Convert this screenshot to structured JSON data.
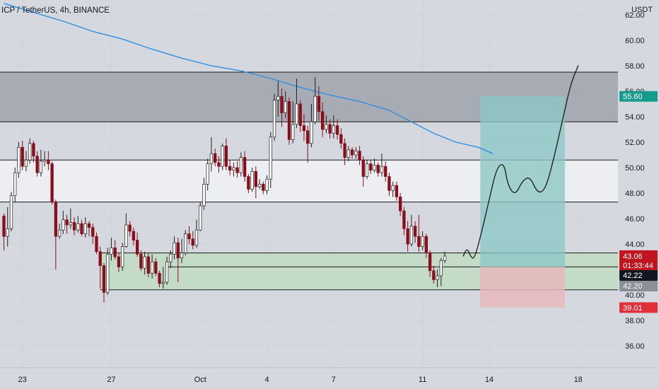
{
  "header": {
    "title": "ICP / TetherUS, 4h, BINANCE"
  },
  "axis": {
    "unit": "USDT"
  },
  "colors": {
    "background": "#d5d9df",
    "up": "#ffffff",
    "down": "#880e1c",
    "wick": "#202020",
    "ma": "#2f8fe0",
    "resistance_zone": "#a7abb3",
    "mid_zone": "#eceef1",
    "support_zone": "#c3dbc7",
    "target_zone": "#8ac7c4",
    "stop_zone": "#e6b8bc"
  },
  "price_tags": {
    "target": "55.60",
    "current": "43.06",
    "countdown": "01:33:44",
    "entry_black": "42.22",
    "entry_gray": "42.20",
    "stop": "39.01"
  },
  "chart_data": {
    "type": "candlestick",
    "title": "ICP / TetherUS, 4h, BINANCE",
    "ylabel": "USDT",
    "ylim": [
      35,
      63
    ],
    "y_ticks": [
      "36.00",
      "38.00",
      "40.00",
      "42.00",
      "44.00",
      "46.00",
      "48.00",
      "50.00",
      "52.00",
      "54.00",
      "56.00",
      "58.00",
      "60.00",
      "62.00"
    ],
    "x_ticks": [
      {
        "label": "23",
        "i": 5
      },
      {
        "label": "27",
        "i": 29
      },
      {
        "label": "Oct",
        "i": 53
      },
      {
        "label": "4",
        "i": 71
      },
      {
        "label": "7",
        "i": 89
      },
      {
        "label": "11",
        "i": 113
      },
      {
        "label": "14",
        "i": 131
      },
      {
        "label": "18",
        "i": 155
      }
    ],
    "candles": [
      [
        46.2,
        44.6,
        43.5,
        46.4
      ],
      [
        44.6,
        45.2,
        43.8,
        46.9
      ],
      [
        45.2,
        47.8,
        45.0,
        48.1
      ],
      [
        47.8,
        49.6,
        47.3,
        50.0
      ],
      [
        49.6,
        51.6,
        49.2,
        52.0
      ],
      [
        51.6,
        50.1,
        49.8,
        52.1
      ],
      [
        50.1,
        50.6,
        49.7,
        51.3
      ],
      [
        50.6,
        51.9,
        50.3,
        52.3
      ],
      [
        51.9,
        50.9,
        50.4,
        52.1
      ],
      [
        50.9,
        49.6,
        49.3,
        51.3
      ],
      [
        49.6,
        50.5,
        49.3,
        51.4
      ],
      [
        50.5,
        50.6,
        50.1,
        51.3
      ],
      [
        50.6,
        50.3,
        49.8,
        51.3
      ],
      [
        50.3,
        47.3,
        47.1,
        50.5
      ],
      [
        47.3,
        44.6,
        42.0,
        47.5
      ],
      [
        44.6,
        45.1,
        44.4,
        45.6
      ],
      [
        45.1,
        45.9,
        44.8,
        46.6
      ],
      [
        45.9,
        45.5,
        44.8,
        46.3
      ],
      [
        45.5,
        45.7,
        45.2,
        46.8
      ],
      [
        45.7,
        45.1,
        44.7,
        46.1
      ],
      [
        45.1,
        45.6,
        44.9,
        46.2
      ],
      [
        45.6,
        44.8,
        44.6,
        45.9
      ],
      [
        44.8,
        45.6,
        44.5,
        46.1
      ],
      [
        45.6,
        45.3,
        44.6,
        45.8
      ],
      [
        45.3,
        44.6,
        44.0,
        45.6
      ],
      [
        44.6,
        43.4,
        43.2,
        44.9
      ],
      [
        43.4,
        42.3,
        40.5,
        43.8
      ],
      [
        42.3,
        40.2,
        39.4,
        42.5
      ],
      [
        40.2,
        43.2,
        40.0,
        43.7
      ],
      [
        43.2,
        43.7,
        42.7,
        44.5
      ],
      [
        43.7,
        43.0,
        42.8,
        44.3
      ],
      [
        43.0,
        42.2,
        41.8,
        43.3
      ],
      [
        42.2,
        43.8,
        41.9,
        44.1
      ],
      [
        43.8,
        45.5,
        43.7,
        46.4
      ],
      [
        45.5,
        45.0,
        44.6,
        45.8
      ],
      [
        45.0,
        44.3,
        43.9,
        45.3
      ],
      [
        44.3,
        43.2,
        43.0,
        44.9
      ],
      [
        43.2,
        42.1,
        41.9,
        43.5
      ],
      [
        42.1,
        43.0,
        41.6,
        43.4
      ],
      [
        43.0,
        41.7,
        41.4,
        43.3
      ],
      [
        41.7,
        42.6,
        41.3,
        43.2
      ],
      [
        42.6,
        41.7,
        41.5,
        42.9
      ],
      [
        41.7,
        40.9,
        40.6,
        41.9
      ],
      [
        40.9,
        41.0,
        40.5,
        42.2
      ],
      [
        41.0,
        42.6,
        40.8,
        43.0
      ],
      [
        42.6,
        43.2,
        42.1,
        43.5
      ],
      [
        43.2,
        44.1,
        42.8,
        44.6
      ],
      [
        44.1,
        42.9,
        41.0,
        44.5
      ],
      [
        42.9,
        43.3,
        42.5,
        44.4
      ],
      [
        43.3,
        44.8,
        43.1,
        45.1
      ],
      [
        44.8,
        44.4,
        44.0,
        45.4
      ],
      [
        44.4,
        43.9,
        43.6,
        45.0
      ],
      [
        43.9,
        45.1,
        43.7,
        45.9
      ],
      [
        45.1,
        47.0,
        45.0,
        47.3
      ],
      [
        47.0,
        48.7,
        46.7,
        49.2
      ],
      [
        48.7,
        50.3,
        48.2,
        50.7
      ],
      [
        50.3,
        51.1,
        49.7,
        52.4
      ],
      [
        51.1,
        50.4,
        50.1,
        51.5
      ],
      [
        50.4,
        50.1,
        49.6,
        50.9
      ],
      [
        50.1,
        51.7,
        49.8,
        51.9
      ],
      [
        51.7,
        50.1,
        49.8,
        52.3
      ],
      [
        50.1,
        49.8,
        49.4,
        50.6
      ],
      [
        49.8,
        50.0,
        49.3,
        50.4
      ],
      [
        50.0,
        49.6,
        49.2,
        50.5
      ],
      [
        49.6,
        50.8,
        49.3,
        51.2
      ],
      [
        50.8,
        49.3,
        48.9,
        51.3
      ],
      [
        49.3,
        48.3,
        48.0,
        49.5
      ],
      [
        48.3,
        49.7,
        48.1,
        50.0
      ],
      [
        49.7,
        48.5,
        47.6,
        50.1
      ],
      [
        48.5,
        48.7,
        48.3,
        49.1
      ],
      [
        48.7,
        48.2,
        47.9,
        48.9
      ],
      [
        48.2,
        49.1,
        47.9,
        49.4
      ],
      [
        49.1,
        52.4,
        48.4,
        52.8
      ],
      [
        52.4,
        55.3,
        52.1,
        55.8
      ],
      [
        55.3,
        55.6,
        54.0,
        56.8
      ],
      [
        55.6,
        54.3,
        53.2,
        56.2
      ],
      [
        54.3,
        55.2,
        53.9,
        56.0
      ],
      [
        55.2,
        52.2,
        51.8,
        55.5
      ],
      [
        52.2,
        53.4,
        51.9,
        55.2
      ],
      [
        53.4,
        55.0,
        53.1,
        57.0
      ],
      [
        55.0,
        53.3,
        52.8,
        55.3
      ],
      [
        53.3,
        52.9,
        52.1,
        54.2
      ],
      [
        52.9,
        51.9,
        50.4,
        53.3
      ],
      [
        51.9,
        53.6,
        51.6,
        55.0
      ],
      [
        53.6,
        55.6,
        53.4,
        57.1
      ],
      [
        55.6,
        54.4,
        53.7,
        56.4
      ],
      [
        54.4,
        53.0,
        52.4,
        55.1
      ],
      [
        53.0,
        53.4,
        52.7,
        54.1
      ],
      [
        53.4,
        52.7,
        52.3,
        53.8
      ],
      [
        52.7,
        53.3,
        52.3,
        54.1
      ],
      [
        53.3,
        52.6,
        52.2,
        53.8
      ],
      [
        52.6,
        51.9,
        51.5,
        53.1
      ],
      [
        51.9,
        50.8,
        50.2,
        52.3
      ],
      [
        50.8,
        51.4,
        50.5,
        51.7
      ],
      [
        51.4,
        51.0,
        50.7,
        51.6
      ],
      [
        51.0,
        51.3,
        50.7,
        51.6
      ],
      [
        51.3,
        50.6,
        50.2,
        51.7
      ],
      [
        50.6,
        49.3,
        48.5,
        50.9
      ],
      [
        49.3,
        50.3,
        49.1,
        50.6
      ],
      [
        50.3,
        49.8,
        49.5,
        50.6
      ],
      [
        49.8,
        50.2,
        49.6,
        50.7
      ],
      [
        50.2,
        49.6,
        49.3,
        50.4
      ],
      [
        49.6,
        50.1,
        49.3,
        51.1
      ],
      [
        50.1,
        49.3,
        48.9,
        50.5
      ],
      [
        49.3,
        48.2,
        47.8,
        49.6
      ],
      [
        48.2,
        48.6,
        47.7,
        48.9
      ],
      [
        48.6,
        47.7,
        47.4,
        48.9
      ],
      [
        47.7,
        46.6,
        46.2,
        48.0
      ],
      [
        46.6,
        45.2,
        44.7,
        46.9
      ],
      [
        45.2,
        44.0,
        43.4,
        45.8
      ],
      [
        44.0,
        45.4,
        43.8,
        46.3
      ],
      [
        45.4,
        44.6,
        44.1,
        45.8
      ],
      [
        44.6,
        43.8,
        43.4,
        46.3
      ],
      [
        43.8,
        44.6,
        43.5,
        45.0
      ],
      [
        44.6,
        43.3,
        42.9,
        44.8
      ],
      [
        43.3,
        41.9,
        41.4,
        43.5
      ],
      [
        41.9,
        41.2,
        40.9,
        42.3
      ],
      [
        41.2,
        41.5,
        40.6,
        42.0
      ],
      [
        41.5,
        42.7,
        40.7,
        42.9
      ],
      [
        42.7,
        43.06,
        42.5,
        43.4
      ]
    ],
    "ma": [
      [
        0,
        62.9
      ],
      [
        8,
        62.2
      ],
      [
        16,
        61.5
      ],
      [
        24,
        60.7
      ],
      [
        32,
        60.1
      ],
      [
        40,
        59.3
      ],
      [
        48,
        58.6
      ],
      [
        56,
        58.0
      ],
      [
        64,
        57.6
      ],
      [
        72,
        57.0
      ],
      [
        80,
        56.3
      ],
      [
        88,
        55.7
      ],
      [
        96,
        55.2
      ],
      [
        104,
        54.5
      ],
      [
        110,
        53.6
      ],
      [
        116,
        52.7
      ],
      [
        122,
        52.0
      ],
      [
        128,
        51.6
      ],
      [
        132,
        51.1
      ]
    ],
    "zones": [
      {
        "kind": "resistance",
        "y1": 53.6,
        "y2": 57.5
      },
      {
        "kind": "mid",
        "y1": 47.3,
        "y2": 50.6
      },
      {
        "kind": "support",
        "y1": 40.4,
        "y2": 43.3
      }
    ],
    "support_line": 42.2,
    "position": {
      "entry": 42.2,
      "target": 55.6,
      "stop": 39.01
    },
    "projection": [
      [
        124,
        43.06
      ],
      [
        125,
        43.7
      ],
      [
        126,
        43.0
      ],
      [
        127,
        42.8
      ],
      [
        129,
        45.0
      ],
      [
        131,
        47.5
      ],
      [
        133,
        50.0
      ],
      [
        135,
        50.4
      ],
      [
        136,
        48.6
      ],
      [
        138,
        47.8
      ],
      [
        140,
        49.0
      ],
      [
        142,
        49.3
      ],
      [
        144,
        48.0
      ],
      [
        146,
        48.2
      ],
      [
        148,
        50.2
      ],
      [
        151,
        54.0
      ],
      [
        153,
        56.6
      ],
      [
        155,
        58.0
      ]
    ]
  }
}
